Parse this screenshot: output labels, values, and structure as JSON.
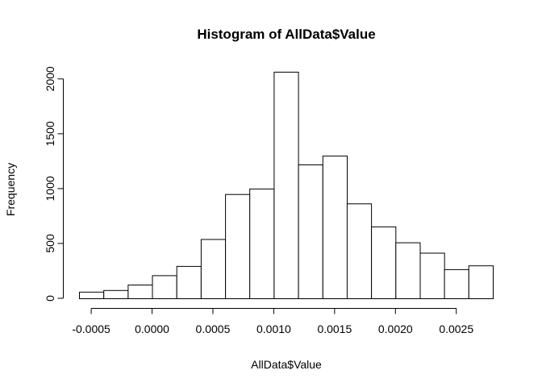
{
  "chart_data": {
    "type": "bar",
    "title": "Histogram of AllData$Value",
    "xlabel": "AllData$Value",
    "ylabel": "Frequency",
    "bin_edges": [
      -0.0006,
      -0.0004,
      -0.0002,
      0.0,
      0.0002,
      0.0004,
      0.0006,
      0.0008,
      0.001,
      0.0012,
      0.0014,
      0.0016,
      0.0018,
      0.002,
      0.0022,
      0.0024,
      0.0026,
      0.0028
    ],
    "values": [
      60,
      75,
      125,
      210,
      295,
      540,
      950,
      1000,
      2065,
      1220,
      1300,
      865,
      655,
      510,
      415,
      265,
      300
    ],
    "x_ticks": [
      -0.0005,
      0.0,
      0.0005,
      0.001,
      0.0015,
      0.002,
      0.0025
    ],
    "x_tick_labels": [
      "-0.0005",
      "0.0000",
      "0.0005",
      "0.0010",
      "0.0015",
      "0.0020",
      "0.0025"
    ],
    "y_ticks": [
      0,
      500,
      1000,
      1500,
      2000
    ],
    "y_tick_labels": [
      "0",
      "500",
      "1000",
      "1500",
      "2000"
    ],
    "xlim": [
      -0.0006,
      0.0028
    ],
    "ylim": [
      0,
      2065
    ],
    "grid": false
  }
}
